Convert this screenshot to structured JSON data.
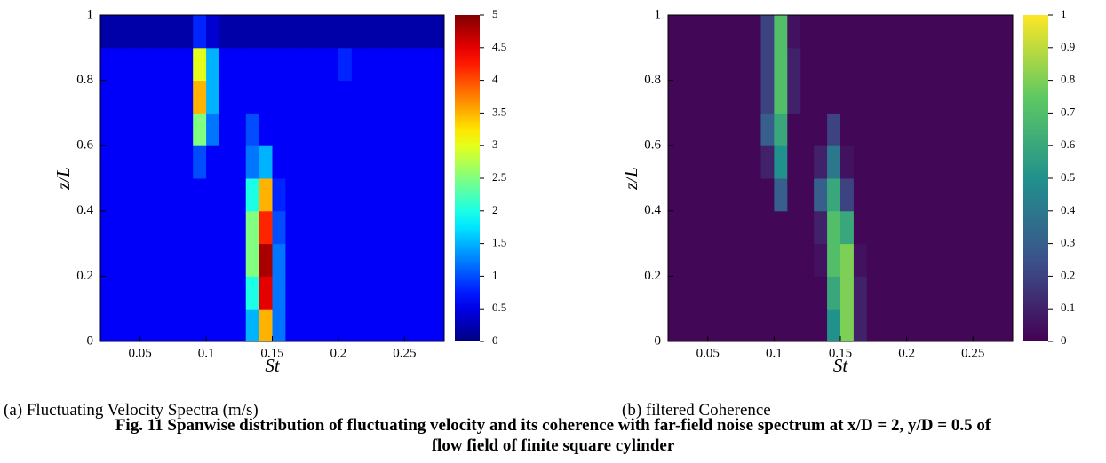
{
  "chart_data": [
    {
      "type": "heatmap",
      "colormap": "jet",
      "caption": "(a) Fluctuating Velocity Spectra (m/s)",
      "xlabel": "St",
      "ylabel": "z/L",
      "xlim": [
        0.02,
        0.28
      ],
      "ylim": [
        0,
        1
      ],
      "xticks": [
        0.05,
        0.1,
        0.15,
        0.2,
        0.25
      ],
      "yticks": [
        0,
        0.2,
        0.4,
        0.6,
        0.8,
        1
      ],
      "x_edges": [
        0.02,
        0.03,
        0.04,
        0.05,
        0.06,
        0.07,
        0.08,
        0.09,
        0.1,
        0.11,
        0.12,
        0.13,
        0.14,
        0.15,
        0.16,
        0.17,
        0.18,
        0.19,
        0.2,
        0.21,
        0.22,
        0.23,
        0.24,
        0.25,
        0.26,
        0.27,
        0.28
      ],
      "y_edges": [
        0,
        0.1,
        0.2,
        0.3,
        0.4,
        0.5,
        0.6,
        0.7,
        0.8,
        0.9,
        1
      ],
      "z": [
        [
          0.6,
          0.6,
          0.6,
          0.6,
          0.6,
          0.6,
          0.6,
          0.6,
          0.6,
          0.6,
          0.6,
          1.5,
          3.5,
          1.2,
          0.6,
          0.6,
          0.6,
          0.6,
          0.6,
          0.6,
          0.6,
          0.6,
          0.6,
          0.6,
          0.6,
          0.6
        ],
        [
          0.6,
          0.6,
          0.6,
          0.6,
          0.6,
          0.6,
          0.6,
          0.6,
          0.6,
          0.6,
          0.6,
          2,
          4.5,
          1.2,
          0.6,
          0.6,
          0.6,
          0.6,
          0.6,
          0.6,
          0.6,
          0.6,
          0.6,
          0.6,
          0.6,
          0.6
        ],
        [
          0.6,
          0.6,
          0.6,
          0.6,
          0.6,
          0.6,
          0.6,
          0.6,
          0.6,
          0.6,
          0.6,
          2.5,
          4.8,
          1.2,
          0.6,
          0.6,
          0.6,
          0.6,
          0.6,
          0.6,
          0.6,
          0.6,
          0.6,
          0.6,
          0.6,
          0.6
        ],
        [
          0.6,
          0.6,
          0.6,
          0.6,
          0.6,
          0.6,
          0.6,
          0.6,
          0.6,
          0.6,
          0.6,
          2.5,
          4.2,
          1,
          0.6,
          0.6,
          0.6,
          0.6,
          0.6,
          0.6,
          0.6,
          0.6,
          0.6,
          0.6,
          0.6,
          0.6
        ],
        [
          0.6,
          0.6,
          0.6,
          0.6,
          0.6,
          0.6,
          0.6,
          0.6,
          0.6,
          0.6,
          0.6,
          2,
          3.5,
          0.8,
          0.6,
          0.6,
          0.6,
          0.6,
          0.6,
          0.6,
          0.6,
          0.6,
          0.6,
          0.6,
          0.6,
          0.6
        ],
        [
          0.6,
          0.6,
          0.6,
          0.6,
          0.6,
          0.6,
          0.6,
          1,
          0.6,
          0.6,
          0.6,
          1.2,
          1.5,
          0.6,
          0.6,
          0.6,
          0.6,
          0.6,
          0.6,
          0.6,
          0.6,
          0.6,
          0.6,
          0.6,
          0.6,
          0.6
        ],
        [
          0.6,
          0.6,
          0.6,
          0.6,
          0.6,
          0.6,
          0.6,
          2.5,
          1.2,
          0.6,
          0.6,
          1,
          0.6,
          0.6,
          0.6,
          0.6,
          0.6,
          0.6,
          0.6,
          0.6,
          0.6,
          0.6,
          0.6,
          0.6,
          0.6,
          0.6
        ],
        [
          0.6,
          0.6,
          0.6,
          0.6,
          0.6,
          0.6,
          0.6,
          3.5,
          1.5,
          0.6,
          0.6,
          0.6,
          0.6,
          0.6,
          0.6,
          0.6,
          0.6,
          0.6,
          0.6,
          0.6,
          0.6,
          0.6,
          0.6,
          0.6,
          0.6,
          0.6
        ],
        [
          0.6,
          0.6,
          0.6,
          0.6,
          0.6,
          0.6,
          0.6,
          3,
          1.5,
          0.6,
          0.6,
          0.6,
          0.6,
          0.6,
          0.6,
          0.6,
          0.6,
          0.6,
          0.8,
          0.6,
          0.6,
          0.6,
          0.6,
          0.6,
          0.6,
          0.6
        ],
        [
          0.2,
          0.2,
          0.2,
          0.2,
          0.2,
          0.2,
          0.2,
          0.8,
          0.4,
          0.2,
          0.2,
          0.2,
          0.2,
          0.2,
          0.2,
          0.2,
          0.2,
          0.2,
          0.2,
          0.2,
          0.2,
          0.2,
          0.2,
          0.2,
          0.2,
          0.2
        ]
      ],
      "zlim": [
        0,
        5
      ],
      "zticks": [
        0,
        0.5,
        1,
        1.5,
        2,
        2.5,
        3,
        3.5,
        4,
        4.5,
        5
      ]
    },
    {
      "type": "heatmap",
      "colormap": "viridis",
      "caption": "(b) filtered Coherence",
      "xlabel": "St",
      "ylabel": "z/L",
      "xlim": [
        0.02,
        0.28
      ],
      "ylim": [
        0,
        1
      ],
      "xticks": [
        0.05,
        0.1,
        0.15,
        0.2,
        0.25
      ],
      "yticks": [
        0,
        0.2,
        0.4,
        0.6,
        0.8,
        1
      ],
      "x_edges": [
        0.02,
        0.03,
        0.04,
        0.05,
        0.06,
        0.07,
        0.08,
        0.09,
        0.1,
        0.11,
        0.12,
        0.13,
        0.14,
        0.15,
        0.16,
        0.17,
        0.18,
        0.19,
        0.2,
        0.21,
        0.22,
        0.23,
        0.24,
        0.25,
        0.26,
        0.27,
        0.28
      ],
      "y_edges": [
        0,
        0.1,
        0.2,
        0.3,
        0.4,
        0.5,
        0.6,
        0.7,
        0.8,
        0.9,
        1
      ],
      "z": [
        [
          0.02,
          0.02,
          0.02,
          0.02,
          0.02,
          0.02,
          0.02,
          0.02,
          0.02,
          0.02,
          0.02,
          0.02,
          0.5,
          0.8,
          0.1,
          0.02,
          0.02,
          0.02,
          0.02,
          0.02,
          0.02,
          0.02,
          0.02,
          0.02,
          0.02,
          0.02
        ],
        [
          0.02,
          0.02,
          0.02,
          0.02,
          0.02,
          0.02,
          0.02,
          0.02,
          0.02,
          0.02,
          0.02,
          0.02,
          0.6,
          0.8,
          0.1,
          0.02,
          0.02,
          0.02,
          0.02,
          0.02,
          0.02,
          0.02,
          0.02,
          0.02,
          0.02,
          0.02
        ],
        [
          0.02,
          0.02,
          0.02,
          0.02,
          0.02,
          0.02,
          0.02,
          0.02,
          0.02,
          0.02,
          0.02,
          0.05,
          0.7,
          0.8,
          0.05,
          0.02,
          0.02,
          0.02,
          0.02,
          0.02,
          0.02,
          0.02,
          0.02,
          0.02,
          0.02,
          0.02
        ],
        [
          0.02,
          0.02,
          0.02,
          0.02,
          0.02,
          0.02,
          0.02,
          0.02,
          0.02,
          0.02,
          0.02,
          0.1,
          0.7,
          0.6,
          0.02,
          0.02,
          0.02,
          0.02,
          0.02,
          0.02,
          0.02,
          0.02,
          0.02,
          0.02,
          0.02,
          0.02
        ],
        [
          0.02,
          0.02,
          0.02,
          0.02,
          0.02,
          0.02,
          0.02,
          0.02,
          0.3,
          0.02,
          0.02,
          0.3,
          0.6,
          0.2,
          0.02,
          0.02,
          0.02,
          0.02,
          0.02,
          0.02,
          0.02,
          0.02,
          0.02,
          0.02,
          0.02,
          0.02
        ],
        [
          0.02,
          0.02,
          0.02,
          0.02,
          0.02,
          0.02,
          0.02,
          0.1,
          0.5,
          0.02,
          0.02,
          0.1,
          0.4,
          0.05,
          0.02,
          0.02,
          0.02,
          0.02,
          0.02,
          0.02,
          0.02,
          0.02,
          0.02,
          0.02,
          0.02,
          0.02
        ],
        [
          0.02,
          0.02,
          0.02,
          0.02,
          0.02,
          0.02,
          0.02,
          0.3,
          0.6,
          0.02,
          0.02,
          0.02,
          0.2,
          0.02,
          0.02,
          0.02,
          0.02,
          0.02,
          0.02,
          0.02,
          0.02,
          0.02,
          0.02,
          0.02,
          0.02,
          0.02
        ],
        [
          0.02,
          0.02,
          0.02,
          0.02,
          0.02,
          0.02,
          0.02,
          0.2,
          0.7,
          0.1,
          0.02,
          0.02,
          0.02,
          0.02,
          0.02,
          0.02,
          0.02,
          0.02,
          0.02,
          0.02,
          0.02,
          0.02,
          0.02,
          0.02,
          0.02,
          0.02
        ],
        [
          0.02,
          0.02,
          0.02,
          0.02,
          0.02,
          0.02,
          0.02,
          0.2,
          0.7,
          0.1,
          0.02,
          0.02,
          0.02,
          0.02,
          0.02,
          0.02,
          0.02,
          0.02,
          0.02,
          0.02,
          0.02,
          0.02,
          0.02,
          0.02,
          0.02,
          0.02
        ],
        [
          0.02,
          0.02,
          0.02,
          0.02,
          0.02,
          0.02,
          0.02,
          0.2,
          0.7,
          0.05,
          0.02,
          0.02,
          0.02,
          0.02,
          0.02,
          0.02,
          0.02,
          0.02,
          0.02,
          0.02,
          0.02,
          0.02,
          0.02,
          0.02,
          0.02,
          0.02
        ]
      ],
      "zlim": [
        0,
        1
      ],
      "zticks": [
        0,
        0.1,
        0.2,
        0.3,
        0.4,
        0.5,
        0.6,
        0.7,
        0.8,
        0.9,
        1
      ]
    }
  ],
  "figure_caption": "Fig. 11 Spanwise distribution of fluctuating velocity and its coherence with far-field noise spectrum at x/D = 2, y/D = 0.5 of flow field of finite square cylinder"
}
